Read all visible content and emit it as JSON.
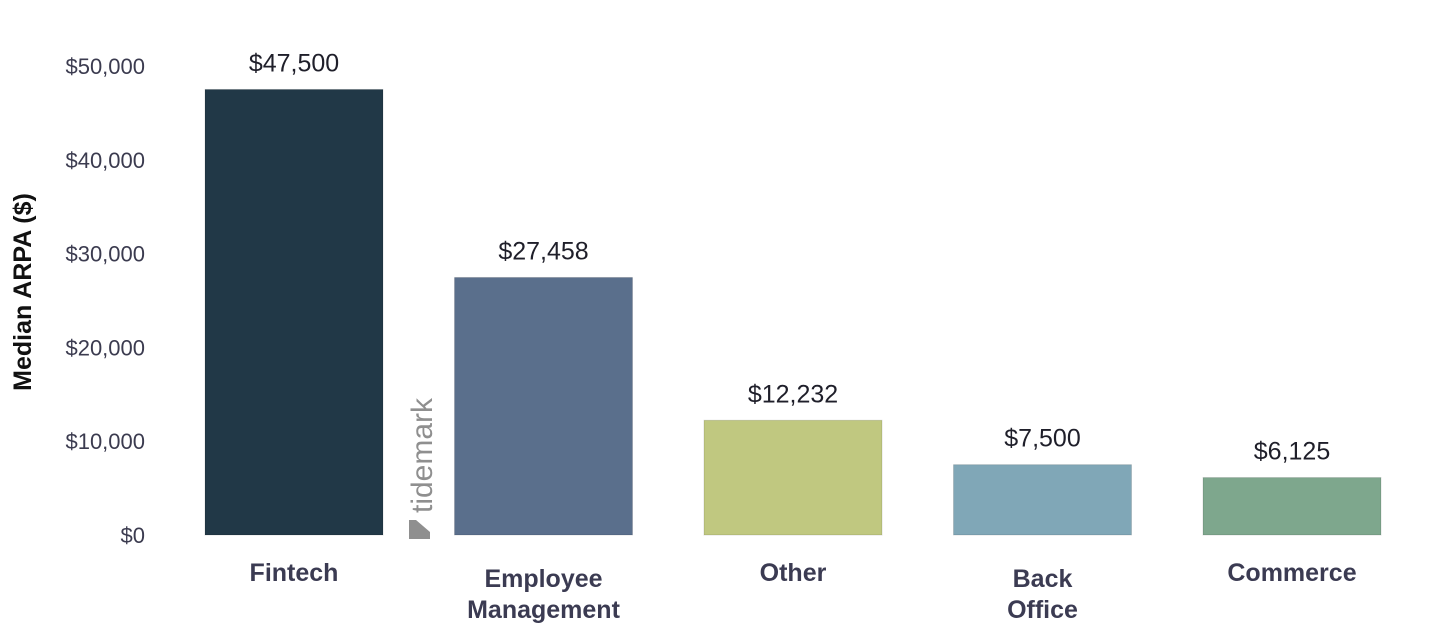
{
  "chart_data": {
    "type": "bar",
    "categories": [
      "Fintech",
      "Employee Management",
      "Other",
      "Back Office",
      "Commerce"
    ],
    "values": [
      47500,
      27458,
      12232,
      7500,
      6125
    ],
    "data_labels": [
      "$47,500",
      "$27,458",
      "$12,232",
      "$7,500",
      "$6,125"
    ],
    "colors": [
      "#213847",
      "#5a6f8c",
      "#c0c880",
      "#80a7b7",
      "#7ea78d"
    ],
    "ylabel": "Median ARPA ($)",
    "ylim": [
      0,
      50000
    ],
    "yticks": [
      0,
      10000,
      20000,
      30000,
      40000,
      50000
    ],
    "ytick_labels": [
      "$0",
      "$10,000",
      "$20,000",
      "$30,000",
      "$40,000",
      "$50,000"
    ],
    "grid": false,
    "legend": "none"
  },
  "watermark": {
    "text": "tidemark"
  }
}
